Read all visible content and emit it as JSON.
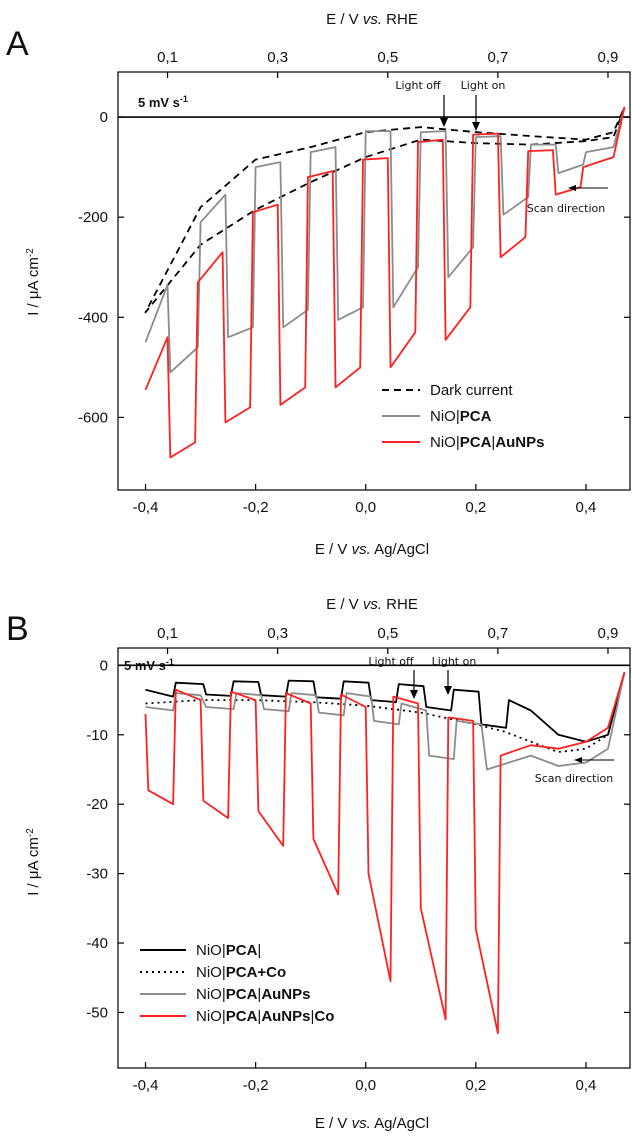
{
  "chart_data": [
    {
      "type": "line",
      "panel": "A",
      "xlabel": "E / V vs. Ag/AgCl",
      "x2label": "E / V vs. RHE",
      "ylabel": "I / μA cm-2",
      "xlim": [
        -0.45,
        0.48
      ],
      "ylim": [
        -745,
        90
      ],
      "x_ticks": [
        -0.4,
        -0.2,
        0.0,
        0.2,
        0.4
      ],
      "x_tick_labels": [
        "-0,4",
        "-0,2",
        "0,0",
        "0,2",
        "0,4"
      ],
      "x2_ticks": [
        -0.36,
        -0.16,
        0.04,
        0.24,
        0.44
      ],
      "x2_tick_labels": [
        "0,1",
        "0,3",
        "0,5",
        "0,7",
        "0,9"
      ],
      "y_ticks": [
        0,
        -200,
        -400,
        -600
      ],
      "y_tick_labels": [
        "0",
        "-200",
        "-400",
        "-600"
      ],
      "grid": false,
      "legend_position": "bottom-right",
      "annotations": {
        "scan_rate": "5 mV s-1",
        "light_off": "Light off",
        "light_on": "Light on",
        "scan_direction": "Scan direction"
      },
      "series": [
        {
          "name": "Dark current",
          "style": "dashed",
          "color": "#000000",
          "x": [
            0.47,
            0.45,
            0.4,
            0.3,
            0.2,
            0.1,
            0.0,
            -0.1,
            -0.2,
            -0.3,
            -0.4,
            -0.3,
            -0.2,
            -0.1,
            0.0,
            0.1,
            0.2,
            0.3,
            0.4,
            0.45,
            0.47
          ],
          "y": [
            20,
            -40,
            -48,
            -55,
            -52,
            -45,
            -80,
            -130,
            -185,
            -255,
            -390,
            -180,
            -85,
            -60,
            -30,
            -20,
            -30,
            -38,
            -45,
            -30,
            20
          ]
        },
        {
          "name": "NiO|PCA",
          "style": "solid",
          "color": "#8c8c8c",
          "x": [
            -0.4,
            -0.36,
            -0.355,
            -0.305,
            -0.3,
            -0.255,
            -0.25,
            -0.205,
            -0.2,
            -0.155,
            -0.15,
            -0.105,
            -0.1,
            -0.055,
            -0.05,
            -0.005,
            0.0,
            0.045,
            0.05,
            0.095,
            0.1,
            0.145,
            0.15,
            0.195,
            0.2,
            0.245,
            0.25,
            0.295,
            0.3,
            0.345,
            0.35,
            0.395,
            0.4,
            0.45,
            0.47
          ],
          "y": [
            -450,
            -335,
            -510,
            -460,
            -210,
            -155,
            -440,
            -420,
            -100,
            -90,
            -420,
            -385,
            -70,
            -60,
            -405,
            -380,
            -28,
            -28,
            -380,
            -300,
            -30,
            -28,
            -320,
            -260,
            -40,
            -38,
            -195,
            -160,
            -55,
            -55,
            -112,
            -95,
            -70,
            -60,
            20
          ]
        },
        {
          "name": "NiO|PCA|AuNPs",
          "style": "solid",
          "color": "#ff2020",
          "x": [
            -0.4,
            -0.36,
            -0.355,
            -0.31,
            -0.305,
            -0.26,
            -0.255,
            -0.21,
            -0.205,
            -0.16,
            -0.155,
            -0.11,
            -0.105,
            -0.06,
            -0.055,
            -0.01,
            -0.005,
            0.04,
            0.045,
            0.09,
            0.095,
            0.14,
            0.145,
            0.19,
            0.195,
            0.24,
            0.245,
            0.29,
            0.295,
            0.34,
            0.345,
            0.39,
            0.395,
            0.45,
            0.47
          ],
          "y": [
            -545,
            -440,
            -680,
            -650,
            -330,
            -270,
            -610,
            -580,
            -190,
            -175,
            -575,
            -540,
            -120,
            -108,
            -540,
            -500,
            -85,
            -82,
            -500,
            -430,
            -50,
            -45,
            -445,
            -380,
            -35,
            -33,
            -280,
            -240,
            -68,
            -66,
            -155,
            -140,
            -100,
            -80,
            20
          ]
        }
      ]
    },
    {
      "type": "line",
      "panel": "B",
      "xlabel": "E / V vs. Ag/AgCl",
      "x2label": "E / V vs. RHE",
      "ylabel": "I / μA cm-2",
      "xlim": [
        -0.45,
        0.48
      ],
      "ylim": [
        -58,
        2.5
      ],
      "x_ticks": [
        -0.4,
        -0.2,
        0.0,
        0.2,
        0.4
      ],
      "x_tick_labels": [
        "-0,4",
        "-0,2",
        "0,0",
        "0,2",
        "0,4"
      ],
      "x2_ticks": [
        -0.36,
        -0.16,
        0.04,
        0.24,
        0.44
      ],
      "x2_tick_labels": [
        "0,1",
        "0,3",
        "0,5",
        "0,7",
        "0,9"
      ],
      "y_ticks": [
        0,
        -10,
        -20,
        -30,
        -40,
        -50
      ],
      "y_tick_labels": [
        "0",
        "-10",
        "-20",
        "-30",
        "-40",
        "-50"
      ],
      "grid": false,
      "legend_position": "bottom-left",
      "annotations": {
        "scan_rate": "5 mV s-1",
        "light_off": "Light off",
        "light_on": "Light on",
        "scan_direction": "Scan direction"
      },
      "series": [
        {
          "name": "NiO|PCA|",
          "style": "solid",
          "color": "#000000",
          "x": [
            -0.4,
            -0.35,
            -0.345,
            -0.295,
            -0.29,
            -0.245,
            -0.24,
            -0.195,
            -0.19,
            -0.145,
            -0.14,
            -0.095,
            -0.09,
            -0.045,
            -0.04,
            0.005,
            0.01,
            0.055,
            0.06,
            0.105,
            0.11,
            0.155,
            0.16,
            0.205,
            0.21,
            0.255,
            0.26,
            0.3,
            0.35,
            0.4,
            0.44,
            0.47
          ],
          "y": [
            -3.5,
            -4.5,
            -2.5,
            -2.7,
            -4.2,
            -4.4,
            -2.3,
            -2.4,
            -4.3,
            -4.5,
            -2.2,
            -2.3,
            -4.6,
            -4.8,
            -2.3,
            -2.5,
            -5.0,
            -5.3,
            -2.7,
            -3.0,
            -6.0,
            -6.5,
            -3.5,
            -3.8,
            -8.5,
            -9.0,
            -5.0,
            -6.5,
            -10.0,
            -11.0,
            -10.0,
            -1.0
          ]
        },
        {
          "name": "NiO|PCA+Co",
          "style": "dotted",
          "color": "#000000",
          "x": [
            -0.4,
            -0.3,
            -0.2,
            -0.1,
            0.0,
            0.1,
            0.2,
            0.25,
            0.3,
            0.35,
            0.4,
            0.44,
            0.47
          ],
          "y": [
            -5.5,
            -5.0,
            -5.0,
            -5.3,
            -5.8,
            -6.8,
            -8.5,
            -9.5,
            -11.0,
            -12.5,
            -12.0,
            -10.0,
            -1.0
          ]
        },
        {
          "name": "NiO|PCA|AuNPs",
          "style": "solid",
          "color": "#8c8c8c",
          "x": [
            -0.4,
            -0.35,
            -0.345,
            -0.3,
            -0.29,
            -0.24,
            -0.235,
            -0.19,
            -0.185,
            -0.14,
            -0.135,
            -0.09,
            -0.085,
            -0.04,
            -0.035,
            0.01,
            0.015,
            0.06,
            0.065,
            0.11,
            0.115,
            0.16,
            0.165,
            0.21,
            0.22,
            0.3,
            0.35,
            0.4,
            0.44,
            0.47
          ],
          "y": [
            -6.0,
            -6.5,
            -4.0,
            -4.3,
            -6.0,
            -6.3,
            -4.0,
            -4.3,
            -6.3,
            -6.6,
            -4.0,
            -4.3,
            -6.8,
            -7.2,
            -4.0,
            -4.5,
            -8.0,
            -8.5,
            -5.5,
            -6.5,
            -13.0,
            -13.5,
            -8.0,
            -8.5,
            -15.0,
            -13.0,
            -14.5,
            -14.0,
            -12.0,
            -1.0
          ]
        },
        {
          "name": "NiO|PCA|AuNPs|Co",
          "style": "solid",
          "color": "#ff2020",
          "x": [
            -0.4,
            -0.395,
            -0.35,
            -0.345,
            -0.3,
            -0.295,
            -0.25,
            -0.245,
            -0.2,
            -0.195,
            -0.15,
            -0.145,
            -0.1,
            -0.095,
            -0.05,
            -0.045,
            0.0,
            0.005,
            0.045,
            0.05,
            0.095,
            0.1,
            0.145,
            0.15,
            0.195,
            0.2,
            0.24,
            0.245,
            0.3,
            0.35,
            0.4,
            0.44,
            0.47
          ],
          "y": [
            -7.0,
            -18.0,
            -20.0,
            -3.5,
            -5.0,
            -19.5,
            -22.0,
            -3.8,
            -5.0,
            -21.0,
            -26.0,
            -4.0,
            -5.5,
            -25.0,
            -33.0,
            -4.2,
            -6.0,
            -30.0,
            -45.5,
            -4.5,
            -5.5,
            -35.0,
            -51.0,
            -7.5,
            -8.0,
            -38.0,
            -53.0,
            -13.0,
            -11.5,
            -12.0,
            -11.0,
            -9.0,
            -1.0
          ]
        }
      ]
    }
  ]
}
